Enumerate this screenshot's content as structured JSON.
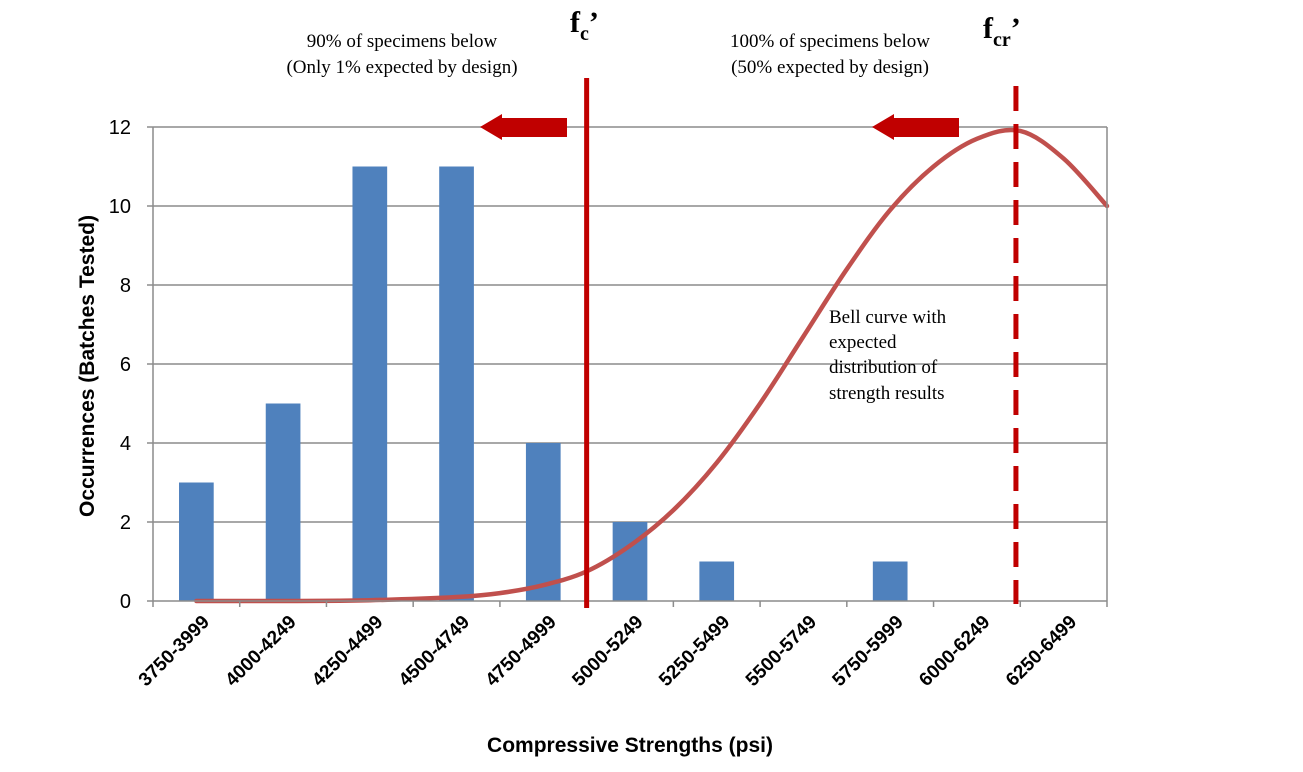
{
  "chart_data": {
    "type": "bar",
    "categories": [
      "3750-3999",
      "4000-4249",
      "4250-4499",
      "4500-4749",
      "4750-4999",
      "5000-5249",
      "5250-5499",
      "5500-5749",
      "5750-5999",
      "6000-6249",
      "6250-6499"
    ],
    "values": [
      3,
      5,
      11,
      11,
      4,
      2,
      1,
      0,
      1,
      0,
      0
    ],
    "xlabel": "Compressive Strengths (psi)",
    "ylabel": "Occurrences (Batches Tested)",
    "ylim": [
      0,
      12
    ],
    "yticks": [
      0,
      2,
      4,
      6,
      8,
      10,
      12
    ],
    "grid": true,
    "bar_color": "#4f81bd",
    "curve": {
      "color": "#c0504d",
      "points": [
        {
          "category_index": 0.5,
          "value": 0.0
        },
        {
          "category_index": 1.5,
          "value": 0.0
        },
        {
          "category_index": 2.5,
          "value": 0.02
        },
        {
          "category_index": 3.5,
          "value": 0.1
        },
        {
          "category_index": 4.0,
          "value": 0.2
        },
        {
          "category_index": 4.5,
          "value": 0.4
        },
        {
          "category_index": 5.0,
          "value": 0.75
        },
        {
          "category_index": 5.5,
          "value": 1.4
        },
        {
          "category_index": 6.0,
          "value": 2.3
        },
        {
          "category_index": 6.5,
          "value": 3.5
        },
        {
          "category_index": 7.0,
          "value": 5.0
        },
        {
          "category_index": 7.5,
          "value": 6.7
        },
        {
          "category_index": 8.0,
          "value": 8.4
        },
        {
          "category_index": 8.5,
          "value": 9.9
        },
        {
          "category_index": 9.0,
          "value": 11.0
        },
        {
          "category_index": 9.5,
          "value": 11.7
        },
        {
          "category_index": 10.0,
          "value": 11.9
        },
        {
          "category_index": 10.5,
          "value": 11.2
        },
        {
          "category_index": 11.0,
          "value": 10.0
        }
      ]
    },
    "markers": {
      "color": "#c00000",
      "fc": {
        "label": "f",
        "sub": "c",
        "prime": "’",
        "category_index": 5.0,
        "style": "solid"
      },
      "fcr": {
        "label": "f",
        "sub": "cr",
        "prime": "’",
        "category_index": 9.95,
        "style": "dashed"
      }
    },
    "annotations": {
      "left_line1": "90% of specimens below",
      "left_line2": "(Only 1% expected by design)",
      "right_line1": "100% of  specimens below",
      "right_line2": "(50% expected by design)",
      "bell_lines": [
        "Bell curve with",
        "expected",
        "distribution of",
        "strength results"
      ]
    }
  }
}
